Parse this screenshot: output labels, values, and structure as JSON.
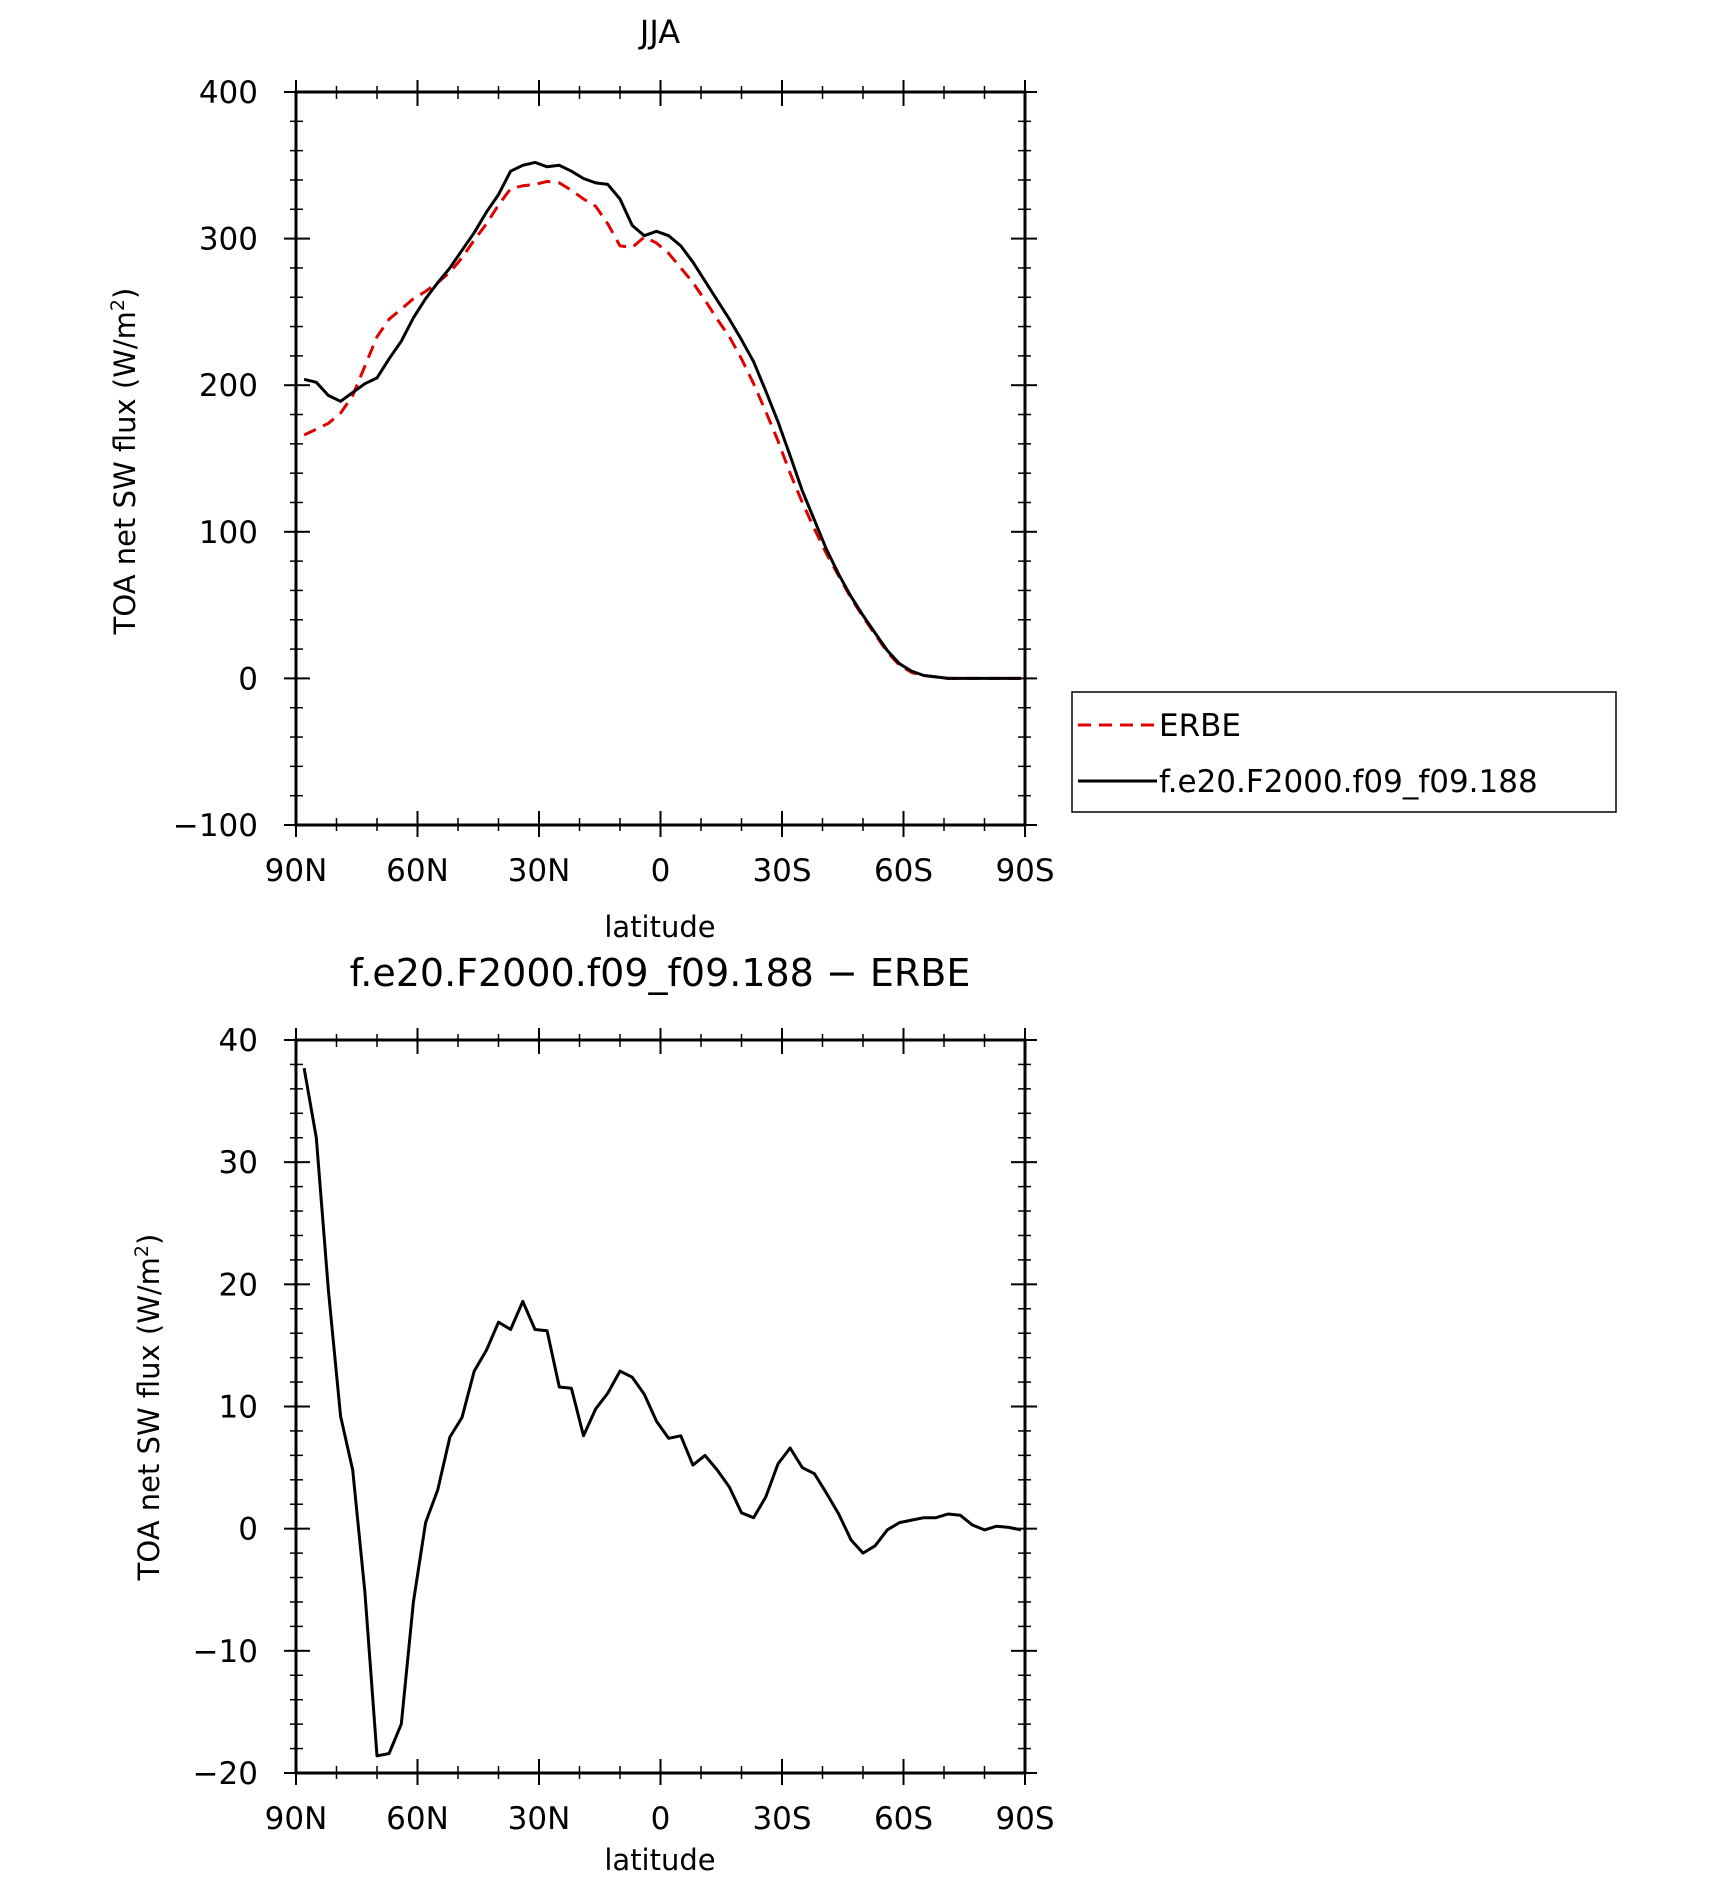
{
  "chart_data": [
    {
      "type": "line",
      "title": "JJA",
      "xlabel": "latitude",
      "ylabel": "TOA net SW flux (W/m²)",
      "xlim": [
        90,
        -90
      ],
      "ylim": [
        -100,
        400
      ],
      "x_ticks": [
        90,
        60,
        30,
        0,
        -30,
        -60,
        -90
      ],
      "x_tick_labels": [
        "90N",
        "60N",
        "30N",
        "0",
        "30S",
        "60S",
        "90S"
      ],
      "y_ticks": [
        -100,
        0,
        100,
        200,
        300,
        400
      ],
      "y_tick_labels": [
        "−100",
        "0",
        "100",
        "200",
        "300",
        "400"
      ],
      "legend_position": "right",
      "series": [
        {
          "name": "ERBE",
          "color": "#e00000",
          "style": "dashed",
          "x": [
            88,
            85,
            82,
            79,
            76,
            73,
            70,
            67,
            64,
            61,
            58,
            55,
            52,
            49,
            46,
            43,
            40,
            37,
            34,
            31,
            28,
            25,
            22,
            19,
            16,
            13,
            10,
            7,
            4,
            1,
            -2,
            -5,
            -8,
            -11,
            -14,
            -17,
            -20,
            -23,
            -26,
            -29,
            -32,
            -35,
            -38,
            -41,
            -44,
            -47,
            -50,
            -53,
            -56,
            -59,
            -62,
            -65,
            -68,
            -71,
            -74,
            -77,
            -80,
            -83,
            -86,
            -89
          ],
          "y": [
            166,
            170,
            174,
            181,
            193,
            213,
            233,
            245,
            252,
            259,
            264,
            270,
            277,
            287,
            299,
            310,
            323,
            334,
            336,
            337,
            339,
            338,
            333,
            327,
            322,
            310,
            295,
            294,
            301,
            297,
            290,
            280,
            270,
            258,
            245,
            233,
            218,
            201,
            182,
            162,
            140,
            120,
            102,
            85,
            70,
            55,
            42,
            30,
            18,
            9,
            4,
            2,
            1,
            0,
            0,
            0,
            0,
            0,
            0,
            0
          ]
        },
        {
          "name": "f.e20.F2000.f09_f09.188",
          "color": "#000000",
          "style": "solid",
          "x": [
            88,
            85,
            82,
            79,
            76,
            73,
            70,
            67,
            64,
            61,
            58,
            55,
            52,
            49,
            46,
            43,
            40,
            37,
            34,
            31,
            28,
            25,
            22,
            19,
            16,
            13,
            10,
            7,
            4,
            1,
            -2,
            -5,
            -8,
            -11,
            -14,
            -17,
            -20,
            -23,
            -26,
            -29,
            -32,
            -35,
            -38,
            -41,
            -44,
            -47,
            -50,
            -53,
            -56,
            -59,
            -62,
            -65,
            -68,
            -71,
            -74,
            -77,
            -80,
            -83,
            -86,
            -89
          ],
          "y": [
            204,
            202,
            193,
            189,
            195,
            201,
            205,
            218,
            230,
            246,
            259,
            270,
            280,
            292,
            304,
            318,
            330,
            346,
            350,
            352,
            349,
            350,
            346,
            341,
            338,
            337,
            327,
            309,
            302,
            305,
            302,
            295,
            284,
            271,
            258,
            245,
            231,
            216,
            196,
            175,
            152,
            128,
            108,
            88,
            71,
            56,
            43,
            31,
            19,
            10,
            5,
            2,
            1,
            0,
            0,
            0,
            0,
            0,
            0,
            0
          ]
        }
      ]
    },
    {
      "type": "line",
      "title": "f.e20.F2000.f09_f09.188 − ERBE",
      "xlabel": "latitude",
      "ylabel": "TOA net SW flux (W/m²)",
      "xlim": [
        90,
        -90
      ],
      "ylim": [
        -20,
        40
      ],
      "x_ticks": [
        90,
        60,
        30,
        0,
        -30,
        -60,
        -90
      ],
      "x_tick_labels": [
        "90N",
        "60N",
        "30N",
        "0",
        "30S",
        "60S",
        "90S"
      ],
      "y_ticks": [
        -20,
        -10,
        0,
        10,
        20,
        30,
        40
      ],
      "y_tick_labels": [
        "−20",
        "−10",
        "0",
        "10",
        "20",
        "30",
        "40"
      ],
      "series": [
        {
          "color": "#000000",
          "style": "solid",
          "x": [
            88,
            85,
            82,
            79,
            76,
            73,
            70,
            67,
            64,
            61,
            58,
            55,
            52,
            49,
            46,
            43,
            40,
            37,
            34,
            31,
            28,
            25,
            22,
            19,
            16,
            13,
            10,
            7,
            4,
            1,
            -2,
            -5,
            -8,
            -11,
            -14,
            -17,
            -20,
            -23,
            -26,
            -29,
            -32,
            -35,
            -38,
            -41,
            -44,
            -47,
            -50,
            -53,
            -56,
            -59,
            -62,
            -65,
            -68,
            -71,
            -74,
            -77,
            -80,
            -83,
            -86,
            -89
          ],
          "y": [
            37.7,
            32,
            19.5,
            9.2,
            4.8,
            -5.2,
            -18.6,
            -18.4,
            -16,
            -6,
            0.5,
            3.2,
            7.5,
            9.1,
            12.9,
            14.6,
            16.9,
            16.3,
            18.6,
            16.3,
            16.2,
            11.6,
            11.5,
            7.6,
            9.8,
            11.1,
            12.9,
            12.4,
            11,
            8.8,
            7.4,
            7.6,
            5.2,
            6,
            4.8,
            3.4,
            1.3,
            0.9,
            2.6,
            5.3,
            6.6,
            5,
            4.5,
            2.9,
            1.2,
            -0.9,
            -2,
            -1.4,
            -0.1,
            0.5,
            0.7,
            0.9,
            0.9,
            1.2,
            1.1,
            0.3,
            -0.1,
            0.2,
            0.1,
            -0.1
          ]
        }
      ]
    }
  ]
}
